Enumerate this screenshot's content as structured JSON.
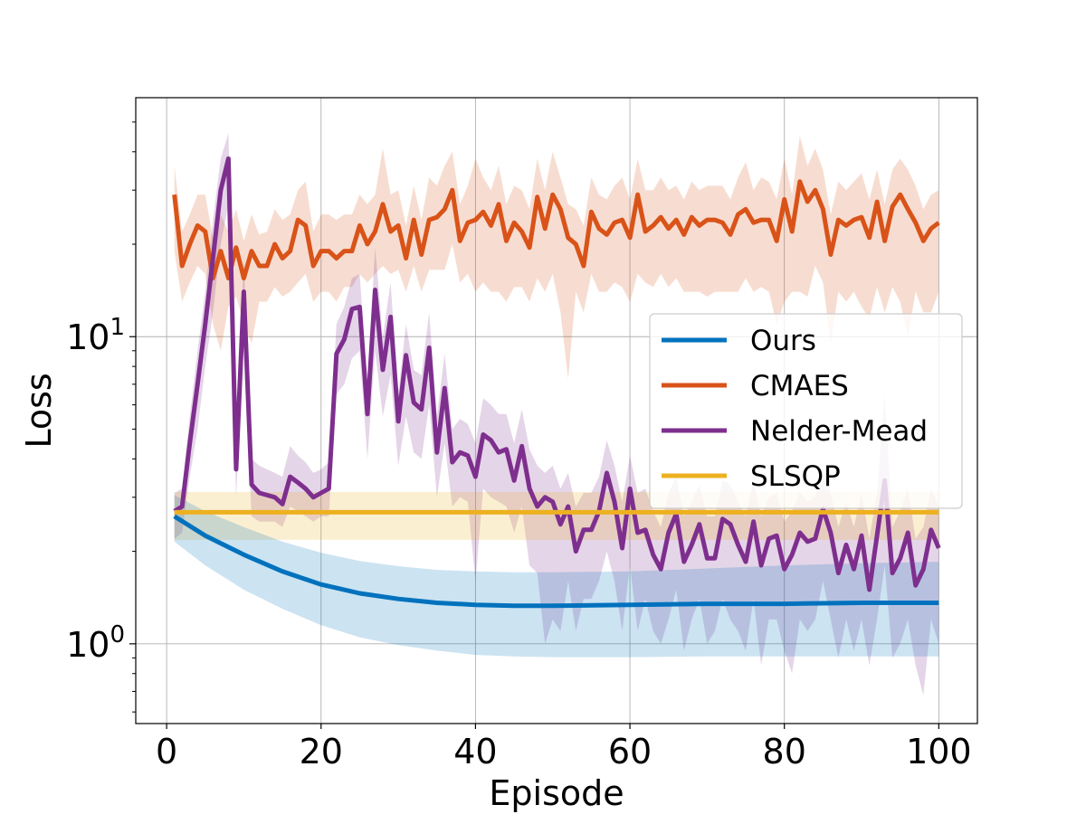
{
  "chart_data": {
    "type": "line",
    "xlabel": "Episode",
    "ylabel": "Loss",
    "xlim": [
      -4,
      105
    ],
    "ylim": [
      0.55,
      60
    ],
    "yscale": "log",
    "grid": true,
    "legend_position": "center-right",
    "x_ticks": [
      0,
      20,
      40,
      60,
      80,
      100
    ],
    "x_tick_labels": [
      "0",
      "20",
      "40",
      "60",
      "80",
      "100"
    ],
    "y_ticks": [
      1,
      10
    ],
    "y_tick_labels": [
      {
        "base": "10",
        "exp": "0"
      },
      {
        "base": "10",
        "exp": "1"
      }
    ],
    "series": [
      {
        "name": "Ours",
        "color": "#0072BD",
        "x": [
          1,
          5,
          10,
          15,
          20,
          25,
          30,
          35,
          40,
          45,
          50,
          60,
          70,
          80,
          90,
          100
        ],
        "values": [
          2.6,
          2.25,
          1.95,
          1.72,
          1.56,
          1.46,
          1.4,
          1.36,
          1.34,
          1.33,
          1.33,
          1.34,
          1.35,
          1.35,
          1.36,
          1.36
        ],
        "lower": [
          2.15,
          1.8,
          1.5,
          1.3,
          1.15,
          1.05,
          0.99,
          0.95,
          0.92,
          0.91,
          0.905,
          0.905,
          0.91,
          0.91,
          0.91,
          0.91
        ],
        "upper": [
          3.05,
          2.7,
          2.4,
          2.15,
          1.98,
          1.86,
          1.79,
          1.74,
          1.72,
          1.71,
          1.71,
          1.72,
          1.76,
          1.8,
          1.83,
          1.85
        ]
      },
      {
        "name": "CMAES",
        "color": "#D95319",
        "x": [
          1,
          2,
          3,
          4,
          5,
          6,
          7,
          8,
          9,
          10,
          11,
          12,
          13,
          14,
          15,
          16,
          17,
          18,
          19,
          20,
          21,
          22,
          23,
          24,
          25,
          26,
          27,
          28,
          29,
          30,
          31,
          32,
          33,
          34,
          35,
          36,
          37,
          38,
          39,
          40,
          41,
          42,
          43,
          44,
          45,
          46,
          47,
          48,
          49,
          50,
          51,
          52,
          53,
          54,
          55,
          56,
          57,
          58,
          59,
          60,
          61,
          62,
          63,
          64,
          65,
          66,
          67,
          68,
          69,
          70,
          71,
          72,
          73,
          74,
          75,
          76,
          77,
          78,
          79,
          80,
          81,
          82,
          83,
          84,
          85,
          86,
          87,
          88,
          89,
          90,
          91,
          92,
          93,
          94,
          95,
          96,
          97,
          98,
          99,
          100
        ],
        "values": [
          29,
          17,
          20,
          23,
          22,
          15.5,
          19,
          15.5,
          19.5,
          15.5,
          19,
          17,
          17,
          20,
          18,
          19,
          24,
          23,
          17,
          19,
          19,
          18,
          19,
          19,
          23,
          20,
          22,
          27,
          22,
          23,
          18,
          24,
          18.5,
          24,
          24.5,
          26,
          30,
          20.5,
          23.5,
          24,
          25.5,
          23,
          27,
          20.5,
          23.5,
          22,
          19.5,
          28.5,
          22.5,
          29,
          26,
          21,
          20,
          17,
          25.5,
          22.5,
          21.5,
          23.5,
          24,
          21,
          29,
          22,
          23,
          24.5,
          22.5,
          24,
          21.5,
          24.5,
          23,
          24,
          24,
          23.5,
          21.5,
          25,
          26,
          23.5,
          24,
          24,
          20.5,
          28,
          22,
          32,
          27.5,
          30,
          26,
          18.5,
          24,
          23,
          24,
          24.5,
          21,
          27.5,
          20.5,
          26.5,
          29,
          26,
          23.5,
          20.5,
          22.5,
          23.5
        ],
        "lower": [
          19,
          13,
          15,
          17,
          16,
          11,
          9,
          12.5,
          13.5,
          11,
          9.5,
          13,
          13,
          14.5,
          13.5,
          14,
          15,
          16,
          13,
          14,
          14,
          13,
          14.5,
          14.5,
          16,
          15,
          16,
          17,
          16,
          16.5,
          14,
          17,
          14,
          16.5,
          16.5,
          16.5,
          20,
          15,
          16,
          14,
          15,
          14,
          14,
          13,
          14.5,
          14.5,
          13,
          15.5,
          14,
          16,
          12,
          7.3,
          14,
          12,
          16,
          14,
          14,
          15,
          14.5,
          13,
          16,
          15,
          14.5,
          16,
          14.5,
          15.5,
          14,
          14,
          14,
          13.5,
          14,
          14,
          14,
          14,
          15.5,
          14,
          14.5,
          14,
          11,
          13,
          14,
          14,
          13.5,
          17,
          15,
          9.5,
          14,
          13,
          14,
          12.5,
          11.5,
          14.5,
          12,
          14.5,
          13,
          10,
          14,
          12,
          12,
          14
        ],
        "upper": [
          36,
          22,
          25,
          29,
          29,
          21,
          25,
          22,
          26,
          20.5,
          25,
          21.5,
          22,
          26,
          24,
          25,
          30,
          32,
          22,
          25,
          25,
          24,
          25,
          25,
          29,
          27,
          29,
          41,
          29,
          30,
          23,
          31,
          24,
          33,
          31,
          36,
          40,
          27,
          31,
          38,
          33,
          30,
          36,
          27,
          31,
          30,
          26,
          38,
          30,
          40,
          33,
          27,
          26,
          23,
          33,
          29,
          28,
          31,
          33,
          28,
          38,
          30,
          30,
          33,
          30,
          31,
          28,
          32,
          30,
          31,
          31,
          31,
          28,
          33,
          37,
          30,
          33,
          32,
          28,
          38,
          29,
          45,
          36,
          41,
          35,
          25,
          32,
          30,
          32,
          34,
          28,
          35,
          27,
          35,
          38,
          35,
          31,
          26,
          29,
          30
        ]
      },
      {
        "name": "Nelder-Mead",
        "color": "#7E2F8E",
        "x": [
          1,
          2,
          3,
          4,
          5,
          6,
          7,
          8,
          9,
          10,
          11,
          12,
          13,
          14,
          15,
          16,
          17,
          18,
          19,
          20,
          21,
          22,
          23,
          24,
          25,
          26,
          27,
          28,
          29,
          30,
          31,
          32,
          33,
          34,
          35,
          36,
          37,
          38,
          39,
          40,
          41,
          42,
          43,
          44,
          45,
          46,
          47,
          48,
          49,
          50,
          51,
          52,
          53,
          54,
          55,
          56,
          57,
          58,
          59,
          60,
          61,
          62,
          63,
          64,
          65,
          66,
          67,
          68,
          69,
          70,
          71,
          72,
          73,
          74,
          75,
          76,
          77,
          78,
          79,
          80,
          81,
          82,
          83,
          84,
          85,
          86,
          87,
          88,
          89,
          90,
          91,
          92,
          93,
          94,
          95,
          96,
          97,
          98,
          99,
          100
        ],
        "values": [
          2.7,
          2.8,
          4.5,
          7,
          11,
          18,
          30,
          38,
          3.7,
          14,
          3.3,
          3.1,
          3.05,
          3.0,
          2.85,
          3.5,
          3.35,
          3.2,
          3.0,
          3.1,
          3.2,
          8.8,
          9.8,
          12.3,
          12.5,
          5.6,
          14.2,
          7.8,
          11.6,
          5.3,
          8.7,
          6.1,
          5.8,
          9.2,
          4.2,
          6.8,
          3.9,
          4.2,
          4.1,
          3.5,
          4.8,
          4.6,
          4.2,
          4.3,
          3.4,
          4.4,
          3.2,
          2.8,
          3.0,
          2.9,
          2.45,
          2.8,
          2.0,
          2.35,
          2.35,
          2.7,
          3.6,
          2.9,
          2.05,
          3.2,
          2.3,
          2.35,
          1.95,
          1.75,
          2.3,
          2.65,
          1.85,
          2.1,
          2.45,
          1.9,
          1.9,
          2.55,
          2.45,
          2.1,
          1.85,
          2.5,
          1.8,
          2.2,
          2.25,
          1.75,
          1.95,
          2.3,
          2.15,
          2.2,
          2.75,
          2.3,
          1.7,
          2.1,
          1.75,
          2.25,
          1.5,
          2.25,
          3.4,
          1.7,
          1.9,
          2.3,
          1.55,
          1.75,
          2.35,
          2.05
        ],
        "lower": [
          2.2,
          2.3,
          3.5,
          5,
          8,
          12,
          20,
          27,
          3.0,
          9,
          2.6,
          2.5,
          2.5,
          2.5,
          2.4,
          2.8,
          2.7,
          2.6,
          2.5,
          2.6,
          2.6,
          6.5,
          7,
          8.5,
          9,
          4,
          9,
          5.5,
          7.5,
          3.8,
          5.5,
          4.2,
          4,
          6,
          3.0,
          4.5,
          2.8,
          3.0,
          2.9,
          1.6,
          3.2,
          3.0,
          2.9,
          2.8,
          2.3,
          2.8,
          1.8,
          1.7,
          1.0,
          1.2,
          1.1,
          1.6,
          1.1,
          1.4,
          1.4,
          1.6,
          2.0,
          1.6,
          1.1,
          1.8,
          1.1,
          1.4,
          1.1,
          1.0,
          1.2,
          1.5,
          0.95,
          1.2,
          1.4,
          1.0,
          1.1,
          1.4,
          1.2,
          1.1,
          0.95,
          1.4,
          0.85,
          1.2,
          1.2,
          0.95,
          0.8,
          1.2,
          1.1,
          1.2,
          1.6,
          1.2,
          0.9,
          1.2,
          0.95,
          1.2,
          0.85,
          1.2,
          1.8,
          0.9,
          1.0,
          1.2,
          0.85,
          0.68,
          1.2,
          1.0
        ],
        "upper": [
          3.1,
          3.2,
          5.5,
          9,
          14,
          24,
          38,
          46,
          4.5,
          18,
          4.0,
          3.8,
          3.7,
          3.6,
          3.5,
          4.4,
          4.1,
          3.9,
          3.6,
          3.7,
          3.9,
          11,
          12.5,
          15.5,
          16,
          7,
          19.5,
          10,
          15,
          6.5,
          11,
          7.8,
          7.5,
          12,
          5.5,
          8.8,
          5.0,
          5.4,
          5.2,
          4.5,
          6.3,
          6.0,
          5.6,
          5.6,
          4.5,
          5.8,
          4.3,
          3.8,
          3.6,
          3.8,
          3.2,
          3.6,
          2.8,
          3.1,
          3.1,
          3.5,
          4.6,
          3.8,
          2.9,
          4.1,
          3.1,
          3.2,
          2.7,
          2.4,
          3.1,
          3.5,
          2.6,
          2.9,
          3.3,
          2.6,
          2.6,
          3.4,
          3.3,
          2.9,
          2.6,
          3.4,
          2.6,
          3.0,
          3.1,
          2.5,
          2.7,
          3.1,
          2.9,
          3.0,
          3.6,
          3.1,
          2.4,
          2.9,
          2.4,
          3.1,
          2.2,
          3.1,
          6.6,
          2.4,
          2.7,
          3.2,
          2.2,
          2.4,
          3.2,
          2.8
        ]
      },
      {
        "name": "SLSQP",
        "color": "#EDB120",
        "x": [
          1,
          100
        ],
        "values": [
          2.68,
          2.68
        ],
        "lower": [
          2.18,
          2.18
        ],
        "upper": [
          3.12,
          3.12
        ]
      }
    ]
  }
}
